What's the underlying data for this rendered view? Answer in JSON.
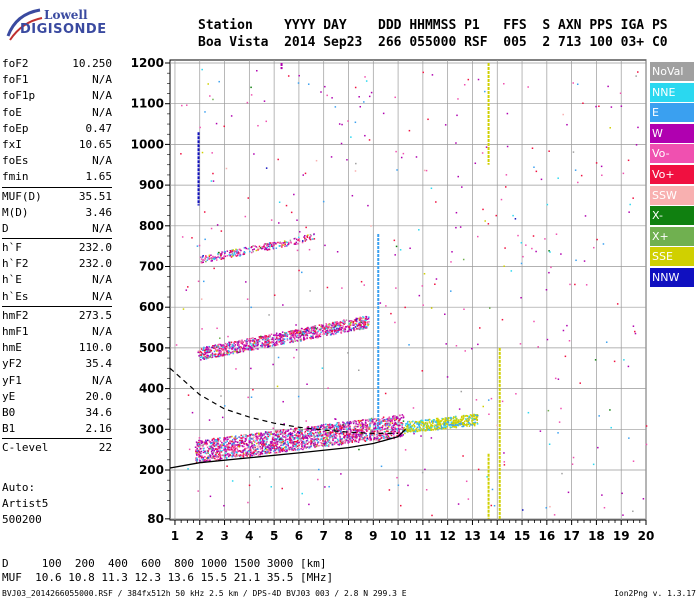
{
  "logo": {
    "line1": "Lowell",
    "line2": "DIGISONDE"
  },
  "header": {
    "row1": "Station    YYYY DAY    DDD HHMMSS P1   FFS  S AXN PPS IGA PS",
    "row2": "Boa Vista  2014 Sep23  266 055000 RSF  005  2 713 100 03+ C0"
  },
  "params": {
    "group1": [
      {
        "k": "foF2",
        "v": "10.250"
      },
      {
        "k": "foF1",
        "v": "N/A"
      },
      {
        "k": "foF1p",
        "v": "N/A"
      },
      {
        "k": "foE",
        "v": "N/A"
      },
      {
        "k": "foEp",
        "v": "0.47"
      },
      {
        "k": "fxI",
        "v": "10.65"
      },
      {
        "k": "foEs",
        "v": "N/A"
      },
      {
        "k": "fmin",
        "v": "1.65"
      }
    ],
    "group2": [
      {
        "k": "MUF(D)",
        "v": "35.51"
      },
      {
        "k": "M(D)",
        "v": "3.46"
      },
      {
        "k": "D",
        "v": "N/A"
      }
    ],
    "group3": [
      {
        "k": "h`F",
        "v": "232.0"
      },
      {
        "k": "h`F2",
        "v": "232.0"
      },
      {
        "k": "h`E",
        "v": "N/A"
      },
      {
        "k": "h`Es",
        "v": "N/A"
      }
    ],
    "group4": [
      {
        "k": "hmF2",
        "v": "273.5"
      },
      {
        "k": "hmF1",
        "v": "N/A"
      },
      {
        "k": "hmE",
        "v": "110.0"
      },
      {
        "k": "yF2",
        "v": "35.4"
      },
      {
        "k": "yF1",
        "v": "N/A"
      },
      {
        "k": "yE",
        "v": "20.0"
      },
      {
        "k": "B0",
        "v": "34.6"
      },
      {
        "k": "B1",
        "v": "2.16"
      }
    ],
    "group5": [
      {
        "k": "C-level",
        "v": "22"
      }
    ]
  },
  "auto": {
    "line1": "Auto:",
    "line2": "Artist5",
    "line3": "500200"
  },
  "legend": [
    {
      "label": "NoVal",
      "color": "#a0a0a0"
    },
    {
      "label": "NNE",
      "color": "#2ad8f0"
    },
    {
      "label": "E",
      "color": "#3aa0f0"
    },
    {
      "label": "W",
      "color": "#b000b0"
    },
    {
      "label": "Vo-",
      "color": "#f050b0"
    },
    {
      "label": "Vo+",
      "color": "#f01040"
    },
    {
      "label": "SSW",
      "color": "#f8b0b0"
    },
    {
      "label": "X-",
      "color": "#108010"
    },
    {
      "label": "X+",
      "color": "#70b050"
    },
    {
      "label": "SSE",
      "color": "#d0d000"
    },
    {
      "label": "NNW",
      "color": "#1010c0"
    }
  ],
  "chart_data": {
    "type": "scatter",
    "x_ticks": [
      "1",
      "2",
      "3",
      "4",
      "5",
      "6",
      "7",
      "8",
      "9",
      "10",
      "11",
      "12",
      "13",
      "14",
      "15",
      "16",
      "17",
      "18",
      "19",
      "20"
    ],
    "y_ticks": [
      "1200",
      "1100",
      "1000",
      "900",
      "800",
      "700",
      "600",
      "500",
      "400",
      "300",
      "200",
      "80"
    ],
    "xlim": [
      0.8,
      20
    ],
    "ylim": [
      80,
      1200
    ],
    "grid": true,
    "traces": [
      {
        "name": "F2 trace",
        "x_range": [
          1.8,
          10.2
        ],
        "y_start": 235,
        "y_end": 300
      },
      {
        "name": "2F2 echo",
        "x_range": [
          1.9,
          8.8
        ],
        "y_start": 480,
        "y_end": 560
      },
      {
        "name": "3F2 echo",
        "x_range": [
          2.0,
          6.6
        ],
        "y_start": 715,
        "y_end": 770
      },
      {
        "name": "ES echo band",
        "x_range": [
          10.2,
          13.2
        ],
        "y_start": 300,
        "y_end": 320
      }
    ],
    "profile_dashed": [
      [
        0.8,
        450
      ],
      [
        2,
        385
      ],
      [
        3,
        350
      ],
      [
        4,
        330
      ],
      [
        5,
        315
      ],
      [
        6,
        305
      ],
      [
        7,
        298
      ],
      [
        8,
        293
      ],
      [
        9,
        290
      ],
      [
        10,
        290
      ]
    ],
    "profile_solid": [
      [
        0.8,
        205
      ],
      [
        2,
        218
      ],
      [
        4,
        230
      ],
      [
        6,
        242
      ],
      [
        8,
        255
      ],
      [
        9,
        265
      ],
      [
        10,
        282
      ],
      [
        10.3,
        300
      ]
    ]
  },
  "footer": {
    "row1": "D     100  200  400  600  800 1000 1500 3000 [km]",
    "row2": "MUF  10.6 10.8 11.3 12.3 13.6 15.5 21.1 35.5 [MHz]",
    "row3": "BVJ03_2014266055000.RSF / 384fx512h 50 kHz 2.5 km / DPS-4D BVJ03 003 / 2.8 N 299.3 E",
    "version": "Ion2Png v. 1.3.17"
  }
}
